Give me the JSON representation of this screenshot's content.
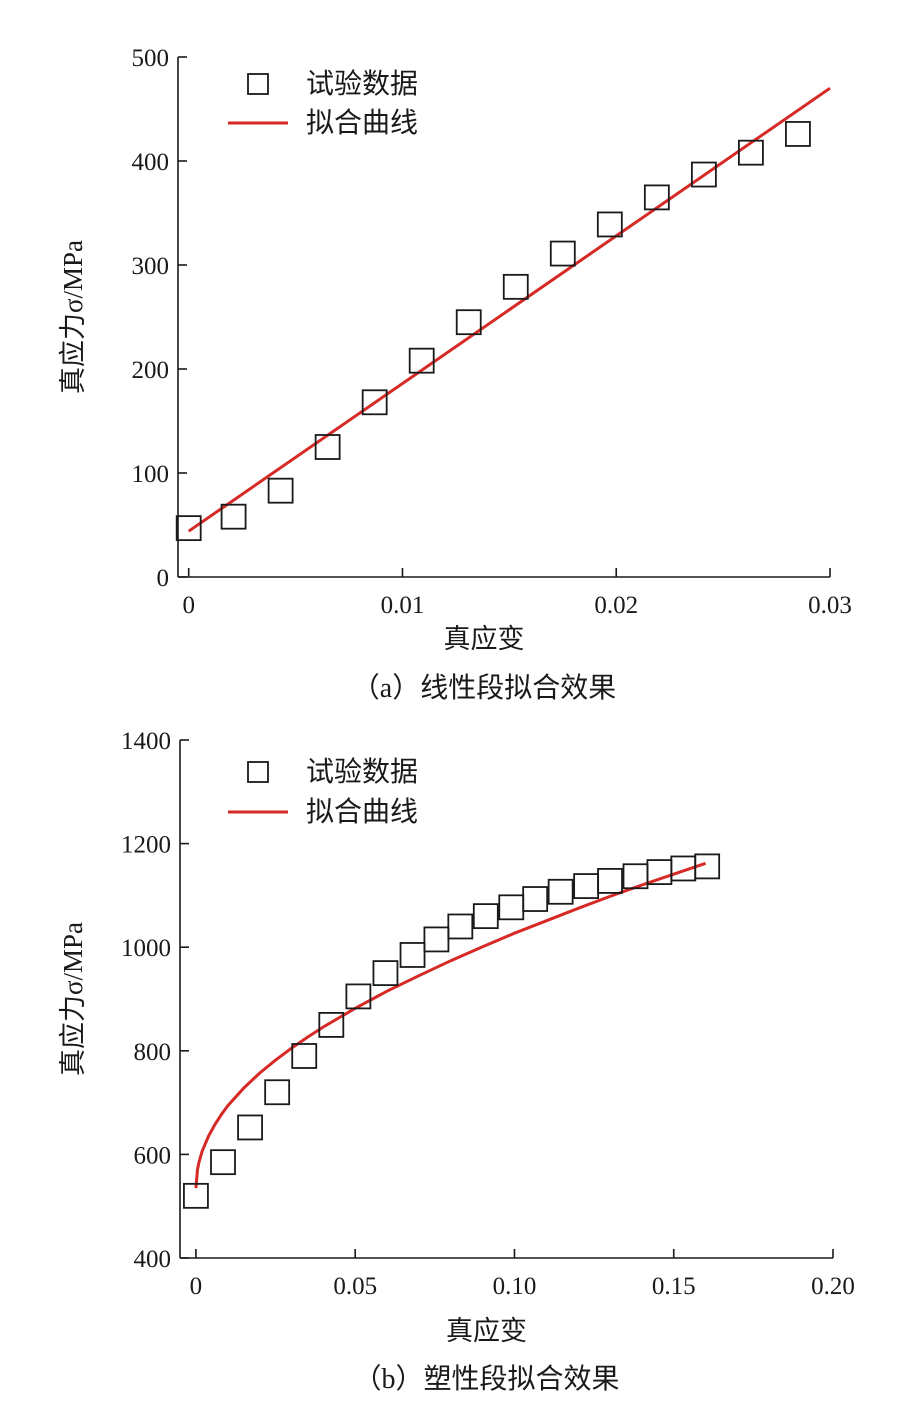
{
  "chart_data": [
    {
      "type": "scatter",
      "caption": "（a）线性段拟合效果",
      "xlabel": "真应变",
      "ylabel": "真应力σ/MPa",
      "xlim": [
        -0.0005,
        0.03
      ],
      "ylim": [
        0,
        500
      ],
      "xticks": [
        0,
        0.01,
        0.02,
        0.03
      ],
      "xtick_labels": [
        "0",
        "0.01",
        "0.02",
        "0.03"
      ],
      "yticks": [
        0,
        100,
        200,
        300,
        400,
        500
      ],
      "ytick_labels": [
        "0",
        "100",
        "200",
        "300",
        "400",
        "500"
      ],
      "grid": false,
      "legend_position": "top-left",
      "series": [
        {
          "name": "试验数据",
          "kind": "markers",
          "marker": "open-square",
          "color": "#1a1a1a",
          "x": [
            0.0,
            0.0021,
            0.0043,
            0.0065,
            0.0087,
            0.0109,
            0.0131,
            0.0153,
            0.0175,
            0.0197,
            0.0219,
            0.0241,
            0.0263,
            0.0285
          ],
          "y": [
            47,
            58,
            83,
            125,
            168,
            208,
            245,
            279,
            311,
            339,
            365,
            387,
            408,
            426
          ]
        },
        {
          "name": "拟合曲线",
          "kind": "line",
          "color": "#d62a26",
          "x": [
            0.0,
            0.03
          ],
          "y": [
            44,
            470
          ]
        }
      ]
    },
    {
      "type": "scatter",
      "caption": "（b）塑性段拟合效果",
      "xlabel": "真应变",
      "ylabel": "真应力σ/MPa",
      "xlim": [
        -0.005,
        0.2
      ],
      "ylim": [
        400,
        1400
      ],
      "xticks": [
        0,
        0.05,
        0.1,
        0.15,
        0.2
      ],
      "xtick_labels": [
        "0",
        "0.05",
        "0.10",
        "0.15",
        "0.20"
      ],
      "yticks": [
        400,
        600,
        800,
        1000,
        1200,
        1400
      ],
      "ytick_labels": [
        "400",
        "600",
        "800",
        "1000",
        "1200",
        "1400"
      ],
      "grid": false,
      "legend_position": "top-left",
      "series": [
        {
          "name": "试验数据",
          "kind": "markers",
          "marker": "open-square",
          "color": "#1a1a1a",
          "x": [
            0.0,
            0.0085,
            0.017,
            0.0255,
            0.034,
            0.0425,
            0.051,
            0.0595,
            0.068,
            0.0755,
            0.083,
            0.091,
            0.099,
            0.1065,
            0.1145,
            0.1225,
            0.13,
            0.138,
            0.1455,
            0.153,
            0.1605
          ],
          "y": [
            520,
            585,
            652,
            720,
            790,
            850,
            905,
            950,
            985,
            1015,
            1040,
            1060,
            1077,
            1093,
            1107,
            1118,
            1128,
            1137,
            1145,
            1152,
            1156
          ]
        },
        {
          "name": "拟合曲线",
          "kind": "line",
          "color": "#d62a26",
          "x": [
            0.0,
            0.0005,
            0.001,
            0.002,
            0.004,
            0.006,
            0.008,
            0.01,
            0.015,
            0.02,
            0.025,
            0.03,
            0.035,
            0.04,
            0.05,
            0.06,
            0.07,
            0.08,
            0.09,
            0.1,
            0.11,
            0.12,
            0.13,
            0.14,
            0.15,
            0.16
          ],
          "y": [
            535,
            571,
            586,
            607,
            636,
            658,
            677,
            694,
            728,
            757,
            782,
            805,
            826,
            846,
            882,
            915,
            945,
            974,
            1001,
            1027,
            1051,
            1075,
            1098,
            1120,
            1141,
            1162
          ]
        }
      ]
    }
  ]
}
